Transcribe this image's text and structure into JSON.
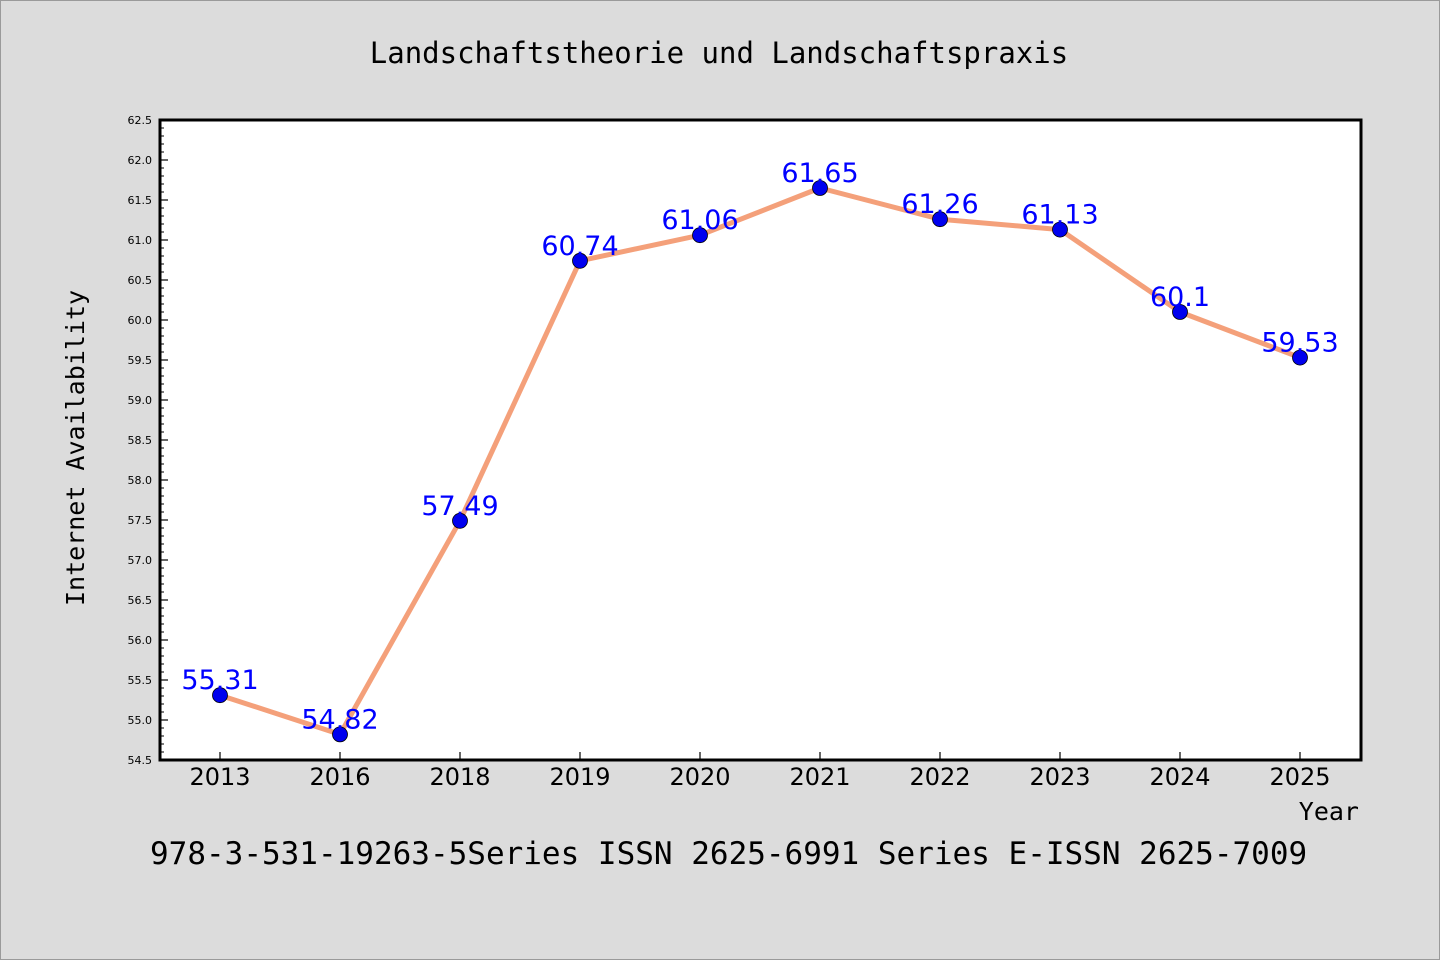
{
  "chart_data": {
    "type": "line",
    "title": "Landschaftstheorie und Landschaftspraxis",
    "xlabel": "Year",
    "ylabel": "Internet Availability",
    "categories": [
      "2013",
      "2016",
      "2018",
      "2019",
      "2020",
      "2021",
      "2022",
      "2023",
      "2024",
      "2025"
    ],
    "series": [
      {
        "values": [
          55.31,
          54.82,
          57.49,
          60.74,
          61.06,
          61.65,
          61.26,
          61.13,
          60.1,
          59.53
        ],
        "labels": [
          "55.31",
          "54.82",
          "57.49",
          "60.74",
          "61.06",
          "61.65",
          "61.26",
          "61.13",
          "60.1",
          "59.53"
        ]
      }
    ],
    "ylim": [
      54.5,
      62.5
    ],
    "yticks": [
      "54.5",
      "55.0",
      "55.5",
      "56.0",
      "56.5",
      "57.0",
      "57.5",
      "58.0",
      "58.5",
      "59.0",
      "59.5",
      "60.0",
      "60.5",
      "61.0",
      "61.5",
      "62.0",
      "62.5"
    ],
    "grid": false,
    "legend": "none",
    "colors": {
      "line": "#f4a07a",
      "marker": "#0000ee",
      "data_label": "#0000ff",
      "background": "#dcdcdc",
      "plot_background": "#ffffff"
    }
  },
  "footer": "978-3-531-19263-5Series ISSN 2625-6991 Series E-ISSN 2625-7009"
}
